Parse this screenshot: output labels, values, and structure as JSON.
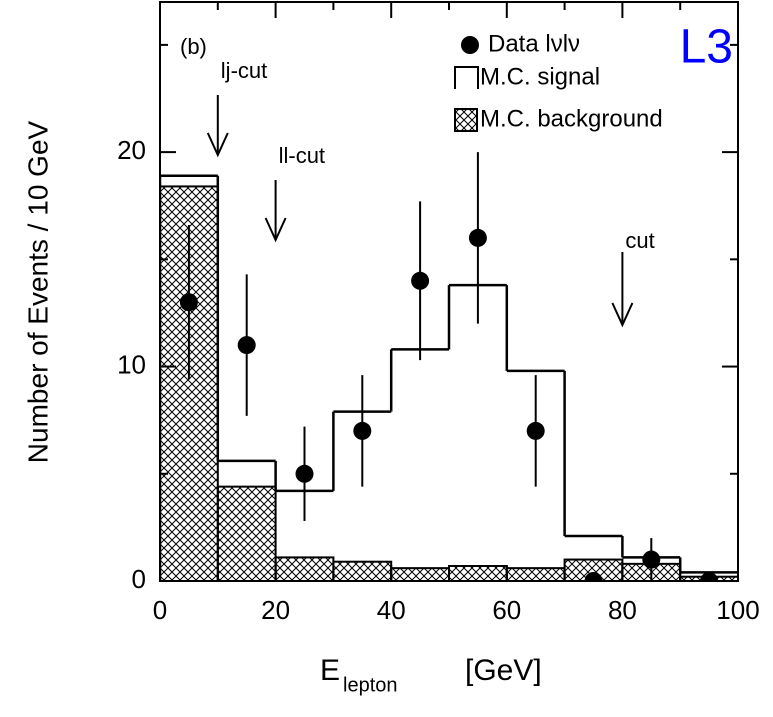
{
  "chart_data": {
    "type": "histogram",
    "label": "(b)",
    "experiment": "L3",
    "ylabel": "Number of Events / 10 GeV",
    "xlabel": {
      "main": "E",
      "sub": "lepton",
      "unit": "[GeV]"
    },
    "bins": [
      0,
      10,
      20,
      30,
      40,
      50,
      60,
      70,
      80,
      90,
      100
    ],
    "series": [
      {
        "name": "M.C. signal",
        "color": "#000000",
        "values": [
          18.9,
          5.6,
          4.2,
          7.9,
          10.8,
          13.8,
          9.8,
          2.1,
          1.1,
          0.4
        ]
      },
      {
        "name": "M.C. background",
        "color": "#000000",
        "values": [
          18.4,
          4.4,
          1.1,
          0.9,
          0.6,
          0.7,
          0.6,
          1.0,
          0.8,
          0.2
        ]
      }
    ],
    "points": {
      "name": "Data lνlν",
      "color": "#000000",
      "x": [
        5,
        15,
        25,
        35,
        45,
        55,
        65,
        75,
        85,
        95
      ],
      "values": [
        13,
        11,
        5,
        7,
        14,
        16,
        7,
        0,
        1,
        0
      ],
      "errors": [
        3.6,
        3.3,
        2.2,
        2.6,
        3.7,
        4.0,
        2.6,
        0,
        1,
        0
      ]
    },
    "annotations": [
      {
        "text": "lj-cut",
        "x": 10
      },
      {
        "text": "ll-cut",
        "x": 20
      },
      {
        "text": "cut",
        "x": 80
      }
    ],
    "xlim": [
      0,
      100
    ],
    "ylim": [
      0,
      27
    ],
    "xticks": [
      0,
      20,
      40,
      60,
      80,
      100
    ],
    "yticks": [
      0,
      10,
      20
    ],
    "xminor": [
      10,
      30,
      50,
      70,
      90
    ],
    "yminor": [
      5,
      15,
      25
    ]
  }
}
